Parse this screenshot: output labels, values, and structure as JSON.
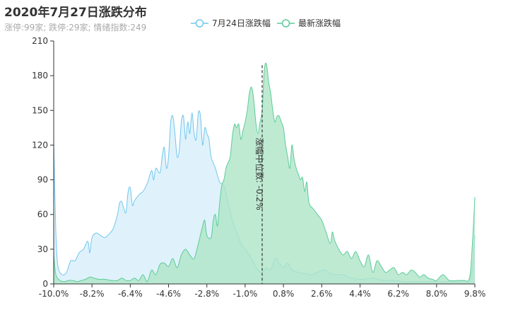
{
  "title": "2020年7月27日涨跌分布",
  "subtitle": "涨停:99家; 跌停:29家; 情绪指数:249",
  "chart_data": {
    "type": "area",
    "x_ticks": [
      "-10.0%",
      "-8.2%",
      "-6.4%",
      "-4.6%",
      "-2.8%",
      "-1.0%",
      "0.8%",
      "2.6%",
      "4.4%",
      "6.2%",
      "8.0%",
      "9.8%"
    ],
    "x_range": [
      -10.0,
      9.8
    ],
    "y_ticks": [
      "0",
      "30",
      "60",
      "90",
      "120",
      "150",
      "180",
      "210"
    ],
    "ylim": [
      0,
      210
    ],
    "median_x": -0.2,
    "median_label": "涨幅中位数: -0.2%",
    "series": [
      {
        "name": "7月24日涨跌幅",
        "color": "#72c6ee",
        "fill": "#ddf1fb",
        "points": [
          [
            -10.0,
            125
          ],
          [
            -9.9,
            45
          ],
          [
            -9.8,
            15
          ],
          [
            -9.6,
            8
          ],
          [
            -9.4,
            10
          ],
          [
            -9.2,
            20
          ],
          [
            -9.0,
            20
          ],
          [
            -8.8,
            27
          ],
          [
            -8.6,
            30
          ],
          [
            -8.4,
            37
          ],
          [
            -8.3,
            27
          ],
          [
            -8.2,
            40
          ],
          [
            -8.0,
            44
          ],
          [
            -7.8,
            42
          ],
          [
            -7.6,
            40
          ],
          [
            -7.4,
            43
          ],
          [
            -7.2,
            48
          ],
          [
            -7.0,
            60
          ],
          [
            -6.9,
            70
          ],
          [
            -6.8,
            71
          ],
          [
            -6.7,
            65
          ],
          [
            -6.6,
            62
          ],
          [
            -6.5,
            80
          ],
          [
            -6.4,
            83
          ],
          [
            -6.3,
            68
          ],
          [
            -6.2,
            72
          ],
          [
            -6.0,
            77
          ],
          [
            -5.8,
            80
          ],
          [
            -5.6,
            87
          ],
          [
            -5.4,
            98
          ],
          [
            -5.3,
            90
          ],
          [
            -5.2,
            100
          ],
          [
            -5.0,
            96
          ],
          [
            -4.9,
            110
          ],
          [
            -4.8,
            118
          ],
          [
            -4.7,
            100
          ],
          [
            -4.6,
            110
          ],
          [
            -4.5,
            140
          ],
          [
            -4.4,
            145
          ],
          [
            -4.3,
            130
          ],
          [
            -4.2,
            110
          ],
          [
            -4.1,
            115
          ],
          [
            -4.0,
            140
          ],
          [
            -3.9,
            145
          ],
          [
            -3.8,
            125
          ],
          [
            -3.7,
            140
          ],
          [
            -3.6,
            130
          ],
          [
            -3.5,
            148
          ],
          [
            -3.4,
            130
          ],
          [
            -3.3,
            125
          ],
          [
            -3.2,
            148
          ],
          [
            -3.1,
            145
          ],
          [
            -3.0,
            120
          ],
          [
            -2.9,
            135
          ],
          [
            -2.8,
            130
          ],
          [
            -2.7,
            125
          ],
          [
            -2.6,
            110
          ],
          [
            -2.4,
            100
          ],
          [
            -2.2,
            88
          ],
          [
            -2.0,
            85
          ],
          [
            -1.8,
            70
          ],
          [
            -1.6,
            55
          ],
          [
            -1.4,
            45
          ],
          [
            -1.2,
            35
          ],
          [
            -1.0,
            30
          ],
          [
            -0.8,
            25
          ],
          [
            -0.6,
            18
          ],
          [
            -0.4,
            12
          ],
          [
            -0.2,
            10
          ],
          [
            0.0,
            14
          ],
          [
            0.2,
            12
          ],
          [
            0.4,
            22
          ],
          [
            0.6,
            18
          ],
          [
            0.8,
            14
          ],
          [
            1.0,
            18
          ],
          [
            1.2,
            12
          ],
          [
            1.5,
            10
          ],
          [
            1.8,
            9
          ],
          [
            2.1,
            8
          ],
          [
            2.4,
            10
          ],
          [
            2.7,
            12
          ],
          [
            3.0,
            9
          ],
          [
            3.3,
            8
          ],
          [
            3.6,
            8
          ],
          [
            4.0,
            5
          ],
          [
            4.5,
            4
          ],
          [
            5.0,
            5
          ],
          [
            5.5,
            3
          ],
          [
            6.0,
            3
          ],
          [
            6.5,
            2
          ],
          [
            7.0,
            2
          ],
          [
            7.5,
            2
          ],
          [
            8.0,
            2
          ],
          [
            8.5,
            2
          ],
          [
            9.0,
            2
          ],
          [
            9.3,
            3
          ],
          [
            9.5,
            2
          ],
          [
            9.7,
            15
          ],
          [
            9.8,
            42
          ]
        ]
      },
      {
        "name": "最新涨跌幅",
        "color": "#5dcb9a",
        "fill": "#aee5c7",
        "points": [
          [
            -10.0,
            25
          ],
          [
            -9.9,
            8
          ],
          [
            -9.7,
            3
          ],
          [
            -9.5,
            2
          ],
          [
            -9.3,
            3
          ],
          [
            -9.1,
            3
          ],
          [
            -8.9,
            2
          ],
          [
            -8.7,
            3
          ],
          [
            -8.5,
            4
          ],
          [
            -8.3,
            6
          ],
          [
            -8.1,
            5
          ],
          [
            -7.9,
            4
          ],
          [
            -7.6,
            4
          ],
          [
            -7.3,
            3
          ],
          [
            -7.0,
            3
          ],
          [
            -6.8,
            5
          ],
          [
            -6.6,
            3
          ],
          [
            -6.4,
            3
          ],
          [
            -6.2,
            5
          ],
          [
            -6.0,
            3
          ],
          [
            -5.8,
            8
          ],
          [
            -5.6,
            2
          ],
          [
            -5.4,
            12
          ],
          [
            -5.2,
            8
          ],
          [
            -5.0,
            17
          ],
          [
            -4.8,
            18
          ],
          [
            -4.6,
            15
          ],
          [
            -4.4,
            22
          ],
          [
            -4.2,
            14
          ],
          [
            -4.0,
            25
          ],
          [
            -3.8,
            30
          ],
          [
            -3.6,
            25
          ],
          [
            -3.4,
            22
          ],
          [
            -3.2,
            35
          ],
          [
            -3.0,
            50
          ],
          [
            -2.9,
            55
          ],
          [
            -2.8,
            42
          ],
          [
            -2.6,
            40
          ],
          [
            -2.5,
            55
          ],
          [
            -2.4,
            60
          ],
          [
            -2.3,
            50
          ],
          [
            -2.2,
            70
          ],
          [
            -2.1,
            85
          ],
          [
            -2.0,
            90
          ],
          [
            -1.9,
            100
          ],
          [
            -1.8,
            105
          ],
          [
            -1.7,
            110
          ],
          [
            -1.6,
            128
          ],
          [
            -1.5,
            138
          ],
          [
            -1.4,
            135
          ],
          [
            -1.3,
            138
          ],
          [
            -1.2,
            125
          ],
          [
            -1.1,
            133
          ],
          [
            -1.0,
            140
          ],
          [
            -0.9,
            150
          ],
          [
            -0.8,
            165
          ],
          [
            -0.7,
            170
          ],
          [
            -0.6,
            160
          ],
          [
            -0.5,
            140
          ],
          [
            -0.4,
            130
          ],
          [
            -0.3,
            140
          ],
          [
            -0.2,
            150
          ],
          [
            -0.1,
            185
          ],
          [
            0.0,
            190
          ],
          [
            0.1,
            175
          ],
          [
            0.2,
            165
          ],
          [
            0.3,
            150
          ],
          [
            0.4,
            140
          ],
          [
            0.5,
            145
          ],
          [
            0.6,
            145
          ],
          [
            0.7,
            140
          ],
          [
            0.8,
            135
          ],
          [
            0.9,
            120
          ],
          [
            1.0,
            110
          ],
          [
            1.1,
            100
          ],
          [
            1.2,
            120
          ],
          [
            1.3,
            108
          ],
          [
            1.4,
            100
          ],
          [
            1.5,
            95
          ],
          [
            1.6,
            90
          ],
          [
            1.7,
            92
          ],
          [
            1.8,
            80
          ],
          [
            1.9,
            88
          ],
          [
            2.0,
            70
          ],
          [
            2.2,
            65
          ],
          [
            2.4,
            60
          ],
          [
            2.6,
            55
          ],
          [
            2.8,
            45
          ],
          [
            3.0,
            35
          ],
          [
            3.1,
            45
          ],
          [
            3.2,
            38
          ],
          [
            3.4,
            30
          ],
          [
            3.6,
            25
          ],
          [
            3.8,
            28
          ],
          [
            4.0,
            22
          ],
          [
            4.2,
            28
          ],
          [
            4.4,
            20
          ],
          [
            4.6,
            15
          ],
          [
            4.8,
            25
          ],
          [
            5.0,
            10
          ],
          [
            5.2,
            20
          ],
          [
            5.4,
            15
          ],
          [
            5.6,
            10
          ],
          [
            5.8,
            12
          ],
          [
            6.0,
            14
          ],
          [
            6.2,
            8
          ],
          [
            6.4,
            10
          ],
          [
            6.6,
            8
          ],
          [
            6.8,
            12
          ],
          [
            7.0,
            10
          ],
          [
            7.2,
            6
          ],
          [
            7.4,
            8
          ],
          [
            7.6,
            5
          ],
          [
            7.8,
            4
          ],
          [
            8.0,
            3
          ],
          [
            8.3,
            8
          ],
          [
            8.6,
            3
          ],
          [
            9.0,
            3
          ],
          [
            9.3,
            3
          ],
          [
            9.5,
            3
          ],
          [
            9.6,
            12
          ],
          [
            9.7,
            40
          ],
          [
            9.8,
            75
          ]
        ]
      }
    ]
  }
}
